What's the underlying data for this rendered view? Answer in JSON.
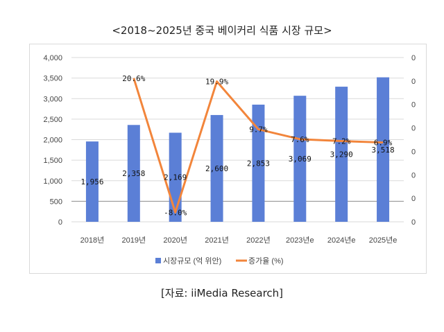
{
  "title": "<2018~2025년 중국 베이커리 식품 시장 규모>",
  "source": "[자료: iiMedia Research]",
  "chart_data": {
    "type": "bar+line",
    "title": "<2018~2025년 중국 베이커리 식품 시장 규모>",
    "categories": [
      "2018년",
      "2019년",
      "2020년",
      "2021년",
      "2022년",
      "2023년e",
      "2024년e",
      "2025년e"
    ],
    "ylim": [
      0,
      4000
    ],
    "yticks": [
      "0",
      "500",
      "1,000",
      "1,500",
      "2,000",
      "2,500",
      "3,000",
      "3,500",
      "4,000"
    ],
    "y2lim": [
      -10,
      25
    ],
    "y2ticks": [
      "0",
      "0",
      "0",
      "0",
      "0",
      "0",
      "0",
      "0"
    ],
    "grid": true,
    "legend_position": "bottom",
    "series": [
      {
        "name": "시장규모 (억 위안)",
        "kind": "bar",
        "color": "#5b7fd6",
        "values": [
          1956,
          2358,
          2169,
          2600,
          2853,
          3069,
          3290,
          3518
        ],
        "labels": [
          "1,956",
          "2,358",
          "2,169",
          "2,600",
          "2,853",
          "3,069",
          "3,290",
          "3,518"
        ]
      },
      {
        "name": "증가율 (%)",
        "kind": "line",
        "axis": "secondary",
        "color": "#f2853b",
        "values": [
          null,
          20.6,
          -8.0,
          19.9,
          9.7,
          7.6,
          7.2,
          6.9
        ],
        "labels": [
          "",
          "20.6%",
          "-8.0%",
          "19.9%",
          "9.7%",
          "7.6%",
          "7.2%",
          "6.9%"
        ]
      }
    ]
  }
}
